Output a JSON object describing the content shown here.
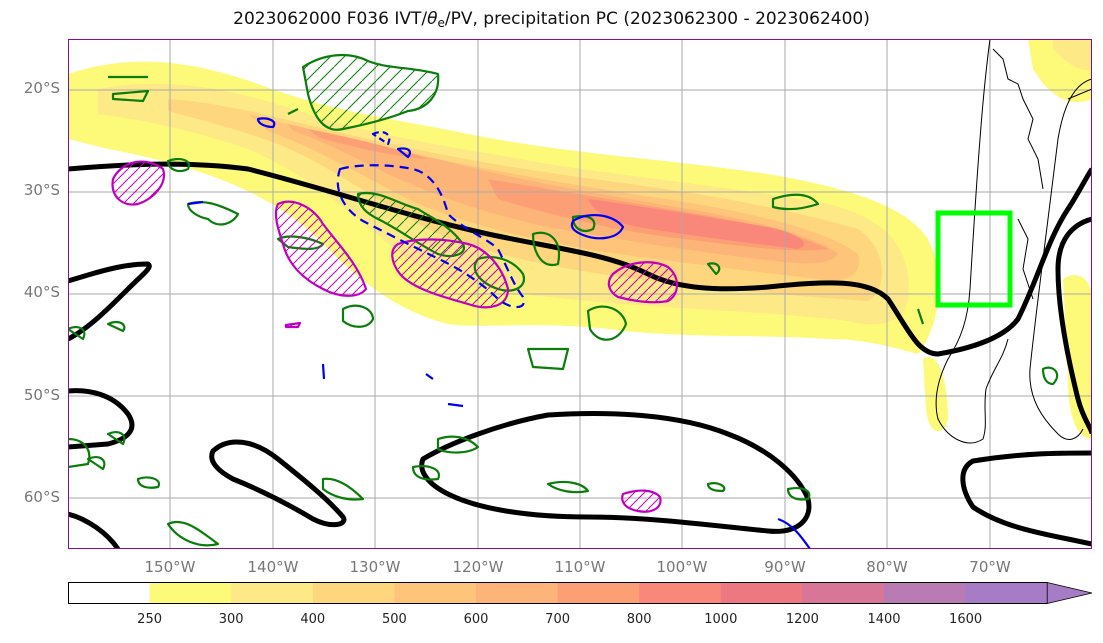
{
  "title": {
    "prefix": "2023062000 F036 IVT/",
    "theta": "θ",
    "theta_sub": "e",
    "suffix": "/PV, precipitation PC (2023062300 - 2023062400)"
  },
  "axes": {
    "lat_labels": [
      "20°S",
      "30°S",
      "40°S",
      "50°S",
      "60°S"
    ],
    "lon_labels": [
      "150°W",
      "140°W",
      "130°W",
      "120°W",
      "110°W",
      "100°W",
      "90°W",
      "80°W",
      "70°W"
    ],
    "lon_range": [
      -160,
      -60
    ],
    "lat_range": [
      -65,
      -15
    ],
    "grid": true
  },
  "colorbar": {
    "levels": [
      "250",
      "300",
      "400",
      "500",
      "600",
      "700",
      "800",
      "1000",
      "1200",
      "1400",
      "1600"
    ],
    "colors": [
      "#ffffff",
      "#fdfa7a",
      "#fde985",
      "#fdd67d",
      "#fdc47a",
      "#fdb478",
      "#fc9f75",
      "#f9887a",
      "#ee7882",
      "#d77697",
      "#b87bb3",
      "#a57cc5"
    ],
    "extend": "max"
  },
  "highlight_box": {
    "color": "#00ff00",
    "lon": [
      -75,
      -68
    ],
    "lat": [
      -41,
      -32
    ]
  },
  "contour_colors": {
    "theta_e": "#000000",
    "pv_positive": "#0a7d0a",
    "pv_magenta": "#c000c0",
    "pv_negative": "#0000ee"
  }
}
